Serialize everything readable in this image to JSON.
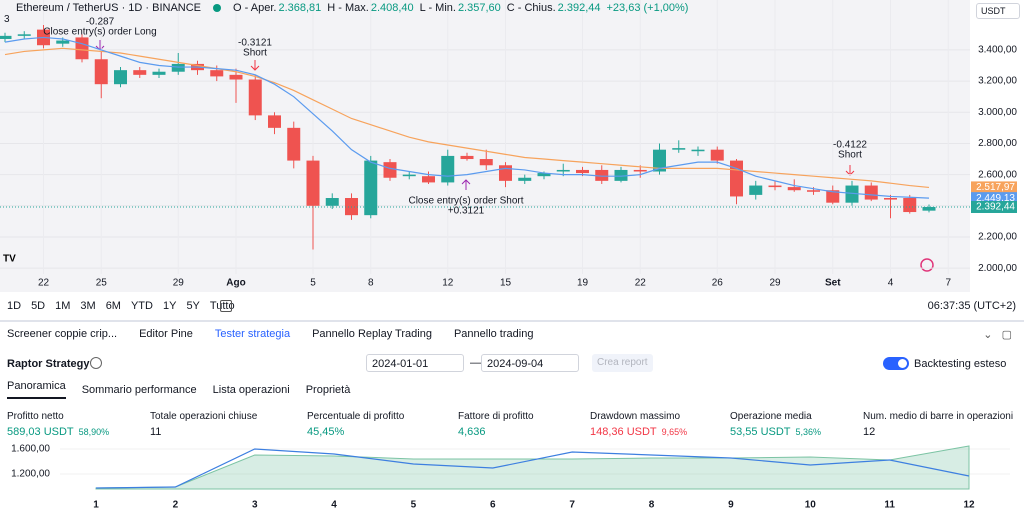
{
  "header": {
    "indicator_count": "3",
    "symbol": "Ethereum / TetherUS · 1D · BINANCE",
    "ohlc": [
      {
        "label": "O - Aper.",
        "value": "2.368,81"
      },
      {
        "label": "H - Max.",
        "value": "2.408,40"
      },
      {
        "label": "L - Min.",
        "value": "2.357,60"
      },
      {
        "label": "C - Chius.",
        "value": "2.392,44"
      }
    ],
    "change": "+23,63 (+1,00%)",
    "currency": "USDT"
  },
  "toolbar": {
    "ranges": [
      "1D",
      "5D",
      "1M",
      "3M",
      "6M",
      "YTD",
      "1Y",
      "5Y",
      "Tutto"
    ],
    "clock": "06:37:35 (UTC+2)"
  },
  "panel": {
    "tabs": [
      "Screener coppie crip...",
      "Editor Pine",
      "Tester strategia",
      "Pannello Replay Trading",
      "Pannello trading"
    ],
    "strategy_name": "Raptor Strategy",
    "date_from": "2024-01-01",
    "date_to": "2024-09-04",
    "report_button": "Crea report",
    "backtest_label": "Backtesting esteso",
    "subtabs": [
      "Panoramica",
      "Sommario performance",
      "Lista operazioni",
      "Proprietà"
    ],
    "metrics": [
      {
        "label": "Profitto netto",
        "value": "589,03 USDT",
        "pct": "58,90%",
        "color": "#089981"
      },
      {
        "label": "Totale operazioni chiuse",
        "value": "11",
        "color": "#131722"
      },
      {
        "label": "Percentuale di profitto",
        "value": "45,45%",
        "color": "#089981"
      },
      {
        "label": "Fattore di profitto",
        "value": "4,636",
        "color": "#089981"
      },
      {
        "label": "Drawdown massimo",
        "value": "148,36 USDT",
        "pct": "9,65%",
        "color": "#f23645"
      },
      {
        "label": "Operazione media",
        "value": "53,55 USDT",
        "pct": "5,36%",
        "color": "#089981"
      },
      {
        "label": "Num. medio di barre in operazioni",
        "value": "12",
        "color": "#131722"
      }
    ]
  },
  "chart_data": [
    {
      "type": "candlestick",
      "up_color": "#26a69a",
      "down_color": "#ef5350",
      "open": [
        3470,
        3490,
        3530,
        3440,
        3480,
        3340,
        3180,
        3270,
        3240,
        3260,
        3310,
        3270,
        3240,
        3210,
        2980,
        2900,
        2690,
        2400,
        2450,
        2340,
        2680,
        2590,
        2590,
        2550,
        2720,
        2700,
        2660,
        2560,
        2590,
        2620,
        2630,
        2630,
        2560,
        2630,
        2620,
        2760,
        2750,
        2760,
        2690,
        2470,
        2530,
        2520,
        2500,
        2500,
        2420,
        2530,
        2450,
        2450,
        2368.81
      ],
      "close": [
        3490,
        3500,
        3430,
        3460,
        3340,
        3180,
        3270,
        3240,
        3260,
        3310,
        3270,
        3230,
        3210,
        2980,
        2900,
        2690,
        2400,
        2450,
        2340,
        2690,
        2580,
        2600,
        2550,
        2720,
        2700,
        2660,
        2560,
        2580,
        2610,
        2630,
        2610,
        2560,
        2630,
        2620,
        2760,
        2770,
        2760,
        2690,
        2460,
        2530,
        2520,
        2500,
        2490,
        2420,
        2530,
        2440,
        2440,
        2360,
        2392.44
      ],
      "high": [
        3510,
        3520,
        3560,
        3480,
        3500,
        3390,
        3290,
        3290,
        3280,
        3380,
        3330,
        3300,
        3280,
        3240,
        3000,
        2940,
        2720,
        2480,
        2480,
        2720,
        2700,
        2620,
        2620,
        2760,
        2740,
        2760,
        2680,
        2600,
        2620,
        2670,
        2650,
        2660,
        2650,
        2660,
        2800,
        2820,
        2780,
        2780,
        2700,
        2560,
        2560,
        2570,
        2520,
        2530,
        2560,
        2550,
        2470,
        2470,
        2408.4
      ],
      "low": [
        3450,
        3470,
        3410,
        3420,
        3320,
        3090,
        3160,
        3220,
        3220,
        3240,
        3240,
        3200,
        3060,
        2950,
        2860,
        2640,
        2120,
        2380,
        2310,
        2320,
        2560,
        2570,
        2540,
        2530,
        2690,
        2630,
        2520,
        2540,
        2570,
        2590,
        2590,
        2540,
        2550,
        2580,
        2600,
        2740,
        2720,
        2670,
        2410,
        2440,
        2500,
        2490,
        2470,
        2410,
        2400,
        2430,
        2320,
        2350,
        2357.6
      ],
      "last_label": "2.392,44",
      "series": [
        {
          "color": "#f7a35c",
          "last_label": "2.517,97",
          "values": [
            3370,
            3390,
            3400,
            3410,
            3400,
            3390,
            3380,
            3360,
            3340,
            3320,
            3300,
            3280,
            3260,
            3230,
            3190,
            3140,
            3080,
            3020,
            2960,
            2920,
            2880,
            2840,
            2810,
            2790,
            2770,
            2750,
            2730,
            2710,
            2700,
            2690,
            2680,
            2670,
            2660,
            2650,
            2640,
            2640,
            2640,
            2640,
            2630,
            2620,
            2610,
            2600,
            2590,
            2580,
            2570,
            2560,
            2545,
            2530,
            2517.97
          ]
        },
        {
          "color": "#5b9bef",
          "last_label": "2.449,13",
          "values": [
            3450,
            3470,
            3480,
            3470,
            3440,
            3400,
            3360,
            3320,
            3300,
            3290,
            3290,
            3280,
            3270,
            3240,
            3180,
            3100,
            2990,
            2880,
            2760,
            2680,
            2640,
            2620,
            2600,
            2590,
            2600,
            2620,
            2640,
            2630,
            2610,
            2600,
            2600,
            2590,
            2590,
            2600,
            2640,
            2660,
            2680,
            2680,
            2640,
            2590,
            2560,
            2530,
            2510,
            2490,
            2480,
            2470,
            2460,
            2455,
            2449.13
          ]
        }
      ],
      "xlim": [
        0,
        50
      ],
      "xticks": [
        {
          "value": 2,
          "label": "22"
        },
        {
          "value": 5,
          "label": "25"
        },
        {
          "value": 9,
          "label": "29"
        },
        {
          "value": 12,
          "label": "Ago"
        },
        {
          "value": 16,
          "label": "5"
        },
        {
          "value": 19,
          "label": "8"
        },
        {
          "value": 23,
          "label": "12"
        },
        {
          "value": 26,
          "label": "15"
        },
        {
          "value": 30,
          "label": "19"
        },
        {
          "value": 33,
          "label": "22"
        },
        {
          "value": 37,
          "label": "26"
        },
        {
          "value": 40,
          "label": "29"
        },
        {
          "value": 43,
          "label": "Set"
        },
        {
          "value": 46,
          "label": "4"
        },
        {
          "value": 49,
          "label": "7"
        }
      ],
      "ylim": [
        1860,
        3720
      ],
      "yticks": [
        {
          "value": 2000,
          "label": "2.000,00"
        },
        {
          "value": 2200,
          "label": "2.200,00"
        },
        {
          "value": 2400,
          "label": "2.400,00"
        },
        {
          "value": 2600,
          "label": "2.600,00"
        },
        {
          "value": 2800,
          "label": "2.800,00"
        },
        {
          "value": 3000,
          "label": "3.000,00"
        },
        {
          "value": 3200,
          "label": "3.200,00"
        },
        {
          "value": 3400,
          "label": "3.400,00"
        }
      ],
      "annotations": [
        "-0.287",
        "Close entry(s) order Long",
        "-0.3121",
        "Short",
        "Close entry(s) order Short",
        "+0.3121",
        "-0.4122",
        "Short"
      ]
    },
    {
      "type": "line",
      "x": [
        1,
        2,
        3,
        4,
        5,
        6,
        7,
        8,
        9,
        10,
        11,
        12
      ],
      "series": [
        {
          "color": "#3d7fe0",
          "values": [
            976,
            992,
            1600,
            1520,
            1360,
            1296,
            1552,
            1504,
            1456,
            1344,
            1424,
            1168
          ]
        },
        {
          "color": "#7cc4a4",
          "area": true,
          "values": [
            976,
            992,
            1504,
            1488,
            1440,
            1440,
            1440,
            1456,
            1456,
            1472,
            1424,
            1648
          ]
        }
      ],
      "xlim": [
        1,
        12
      ],
      "xticks": [
        1,
        2,
        3,
        4,
        5,
        6,
        7,
        8,
        9,
        10,
        11,
        12
      ],
      "ylim": [
        960,
        1760
      ],
      "yticks": [
        {
          "value": 1600,
          "label": "1.600,00"
        },
        {
          "value": 1200,
          "label": "1.200,00"
        }
      ]
    }
  ]
}
